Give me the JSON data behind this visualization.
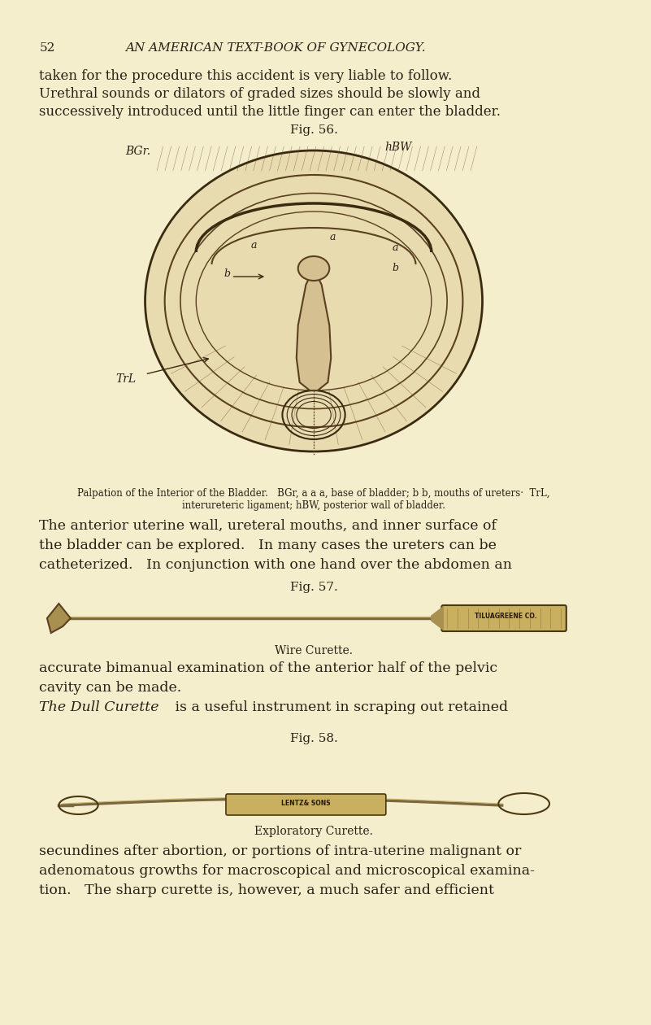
{
  "bg_color": "#f5eecd",
  "page_number": "52",
  "header": "AN AMERICAN TEXT-BOOK OF GYNECOLOGY.",
  "para1": "taken for the procedure this accident is very liable to follow.\nUrethral sounds or dilators of graded sizes should be slowly and\nsuccessively introduced until the little finger can enter the bladder.",
  "fig56_label": "Fig. 56.",
  "fig56_caption_line1": "Palpation of the Interior of the Bladder.   BGr, a a a, base of bladder; b b, mouths of ureters·  TrL,",
  "fig56_caption_line2": "interureteric ligament; hBW, posterior wall of bladder.",
  "para2_line1": "The anterior uterine wall, ureteral mouths, and inner surface of",
  "para2_line2": "the bladder can be explored.   In many cases the ureters can be",
  "para2_line3": "catheterized.   In conjunction with one hand over the abdomen an",
  "fig57_label": "Fig. 57.",
  "fig57_caption": "Wire Curette.",
  "para3_line1": "accurate bimanual examination of the anterior half of the pelvic",
  "para3_line2": "cavity can be made.",
  "para3_line3": "The Dull Curette is a useful instrument in scraping out retained",
  "fig58_label": "Fig. 58.",
  "fig58_caption": "Exploratory Curette.",
  "para4_line1": "secundines after abortion, or portions of intra-uterine malignant or",
  "para4_line2": "adenomatous growths for macroscopical and microscopical examina-",
  "para4_line3": "tion.   The sharp curette is, however, a much safer and efficient",
  "text_color": "#2a2015",
  "annotation_color": "#2a2015",
  "fig_label_color": "#2a2015"
}
